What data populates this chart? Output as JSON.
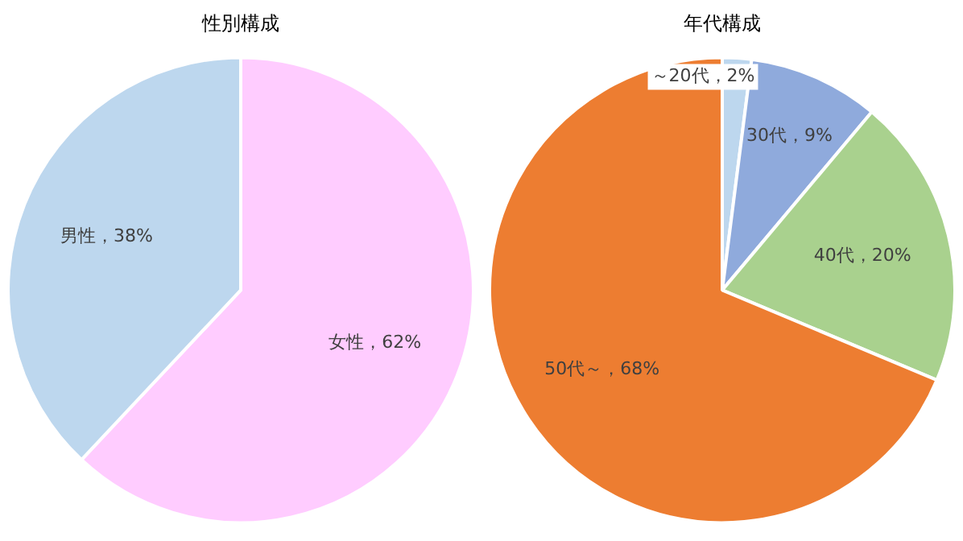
{
  "chart_data": [
    {
      "type": "pie",
      "title": "性別構成",
      "categories": [
        "女性",
        "男性"
      ],
      "values": [
        62,
        38
      ],
      "colors": [
        "#ffccff",
        "#bdd7ee"
      ],
      "value_labels": [
        "，62%",
        "，38%"
      ],
      "legend": false
    },
    {
      "type": "pie",
      "title": "年代構成",
      "categories": [
        "～20代",
        "30代",
        "40代",
        "50代～"
      ],
      "values": [
        2,
        9,
        20,
        68
      ],
      "colors": [
        "#bdd7ee",
        "#8faadc",
        "#a9d18e",
        "#ed7d31"
      ],
      "value_labels": [
        "，2%",
        "，9%",
        "，20%",
        "，68%"
      ],
      "legend": false
    }
  ]
}
